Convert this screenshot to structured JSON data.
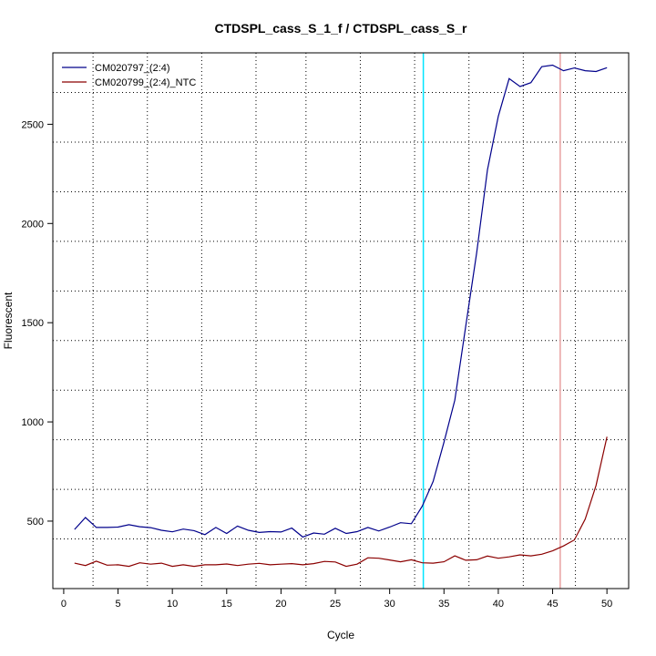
{
  "chart_data": {
    "type": "line",
    "title": "CTDSPL_cass_S_1_f / CTDSPL_cass_S_r",
    "xlabel": "Cycle",
    "ylabel": "Fluorescent",
    "xlim": [
      -1,
      52
    ],
    "ylim": [
      160,
      2860
    ],
    "xticks": [
      0,
      5,
      10,
      15,
      20,
      25,
      30,
      35,
      40,
      45,
      50
    ],
    "yticks": [
      500,
      1000,
      1500,
      2000,
      2500
    ],
    "x_grid": [
      2.7,
      7.7,
      12.7,
      17.7,
      22.3,
      27.3,
      32.3,
      37.3,
      42.3,
      47.1
    ],
    "y_grid": [
      410,
      660,
      910,
      1160,
      1410,
      1660,
      1910,
      2160,
      2410,
      2660
    ],
    "legend_position": "top-left",
    "threshold_line": {
      "x": 33.1,
      "color": "#00e5ff"
    },
    "ct_line": {
      "x": 45.7,
      "color": "#e8a0a0"
    },
    "series": [
      {
        "name": "CM020797_(2:4)",
        "color": "#00008b",
        "x": [
          1,
          2,
          3,
          4,
          5,
          6,
          7,
          8,
          9,
          10,
          11,
          12,
          13,
          14,
          15,
          16,
          17,
          18,
          19,
          20,
          21,
          22,
          23,
          24,
          25,
          26,
          27,
          28,
          29,
          30,
          31,
          32,
          33,
          34,
          35,
          36,
          37,
          38,
          39,
          40,
          41,
          42,
          43,
          44,
          45,
          46,
          47,
          48,
          49,
          50
        ],
        "values": [
          458,
          518,
          468,
          468,
          470,
          482,
          472,
          467,
          454,
          446,
          460,
          452,
          432,
          468,
          438,
          475,
          454,
          443,
          447,
          445,
          465,
          420,
          440,
          434,
          464,
          438,
          447,
          468,
          450,
          470,
          492,
          487,
          575,
          700,
          898,
          1110,
          1480,
          1850,
          2270,
          2540,
          2730,
          2690,
          2710,
          2790,
          2798,
          2770,
          2784,
          2770,
          2766,
          2785
        ]
      },
      {
        "name": "CM020799_(2:4)_NTC",
        "color": "#8b0000",
        "x": [
          1,
          2,
          3,
          4,
          5,
          6,
          7,
          8,
          9,
          10,
          11,
          12,
          13,
          14,
          15,
          16,
          17,
          18,
          19,
          20,
          21,
          22,
          23,
          24,
          25,
          26,
          27,
          28,
          29,
          30,
          31,
          32,
          33,
          34,
          35,
          36,
          37,
          38,
          39,
          40,
          41,
          42,
          43,
          44,
          45,
          46,
          47,
          48,
          49,
          50
        ],
        "values": [
          288,
          276,
          298,
          278,
          280,
          272,
          290,
          283,
          288,
          272,
          280,
          272,
          280,
          280,
          284,
          276,
          283,
          287,
          280,
          283,
          286,
          280,
          286,
          297,
          294,
          272,
          283,
          315,
          313,
          304,
          295,
          305,
          290,
          288,
          295,
          325,
          303,
          305,
          324,
          313,
          320,
          330,
          325,
          333,
          350,
          375,
          405,
          510,
          680,
          925
        ]
      }
    ]
  }
}
